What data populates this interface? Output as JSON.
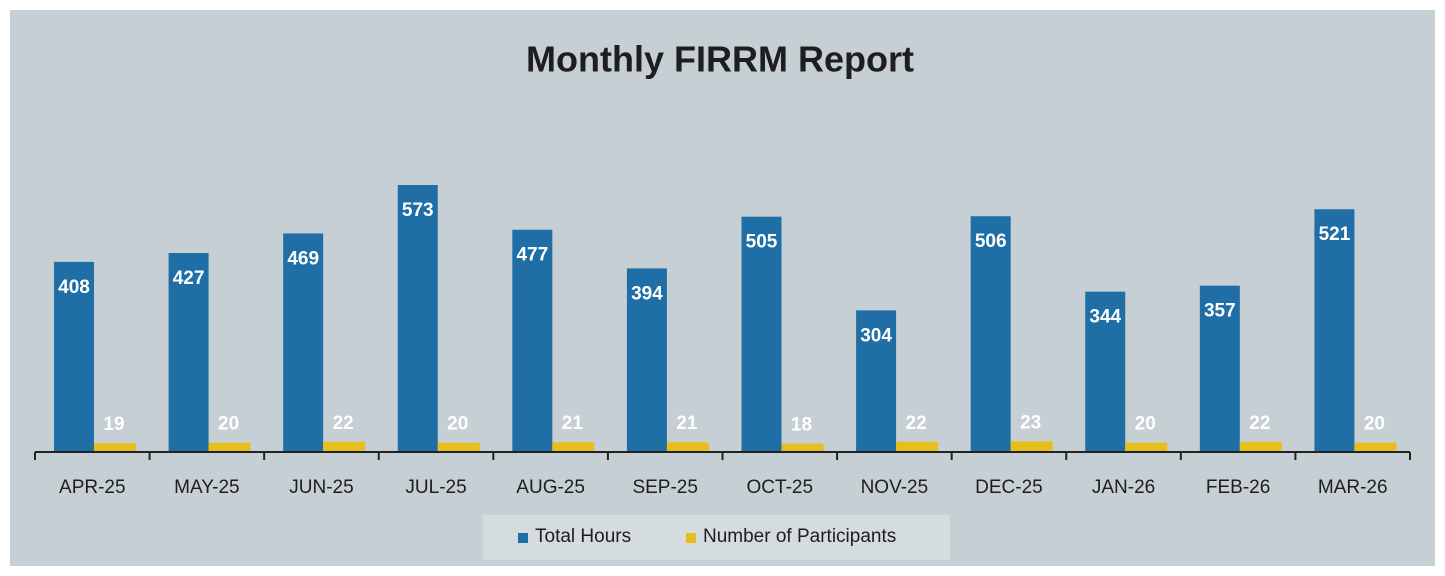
{
  "chart_data": {
    "type": "bar",
    "title": "Monthly FIRRM Report",
    "categories": [
      "APR-25",
      "MAY-25",
      "JUN-25",
      "JUL-25",
      "AUG-25",
      "SEP-25",
      "OCT-25",
      "NOV-25",
      "DEC-25",
      "JAN-26",
      "FEB-26",
      "MAR-26"
    ],
    "series": [
      {
        "name": "Total Hours",
        "color": "#1f6fa6",
        "values": [
          408,
          427,
          469,
          573,
          477,
          394,
          505,
          304,
          506,
          344,
          357,
          521
        ]
      },
      {
        "name": "Number of Participants",
        "color": "#e6bf1e",
        "values": [
          19,
          20,
          22,
          20,
          21,
          21,
          18,
          22,
          23,
          20,
          22,
          20
        ]
      }
    ],
    "legend": "bottom"
  }
}
